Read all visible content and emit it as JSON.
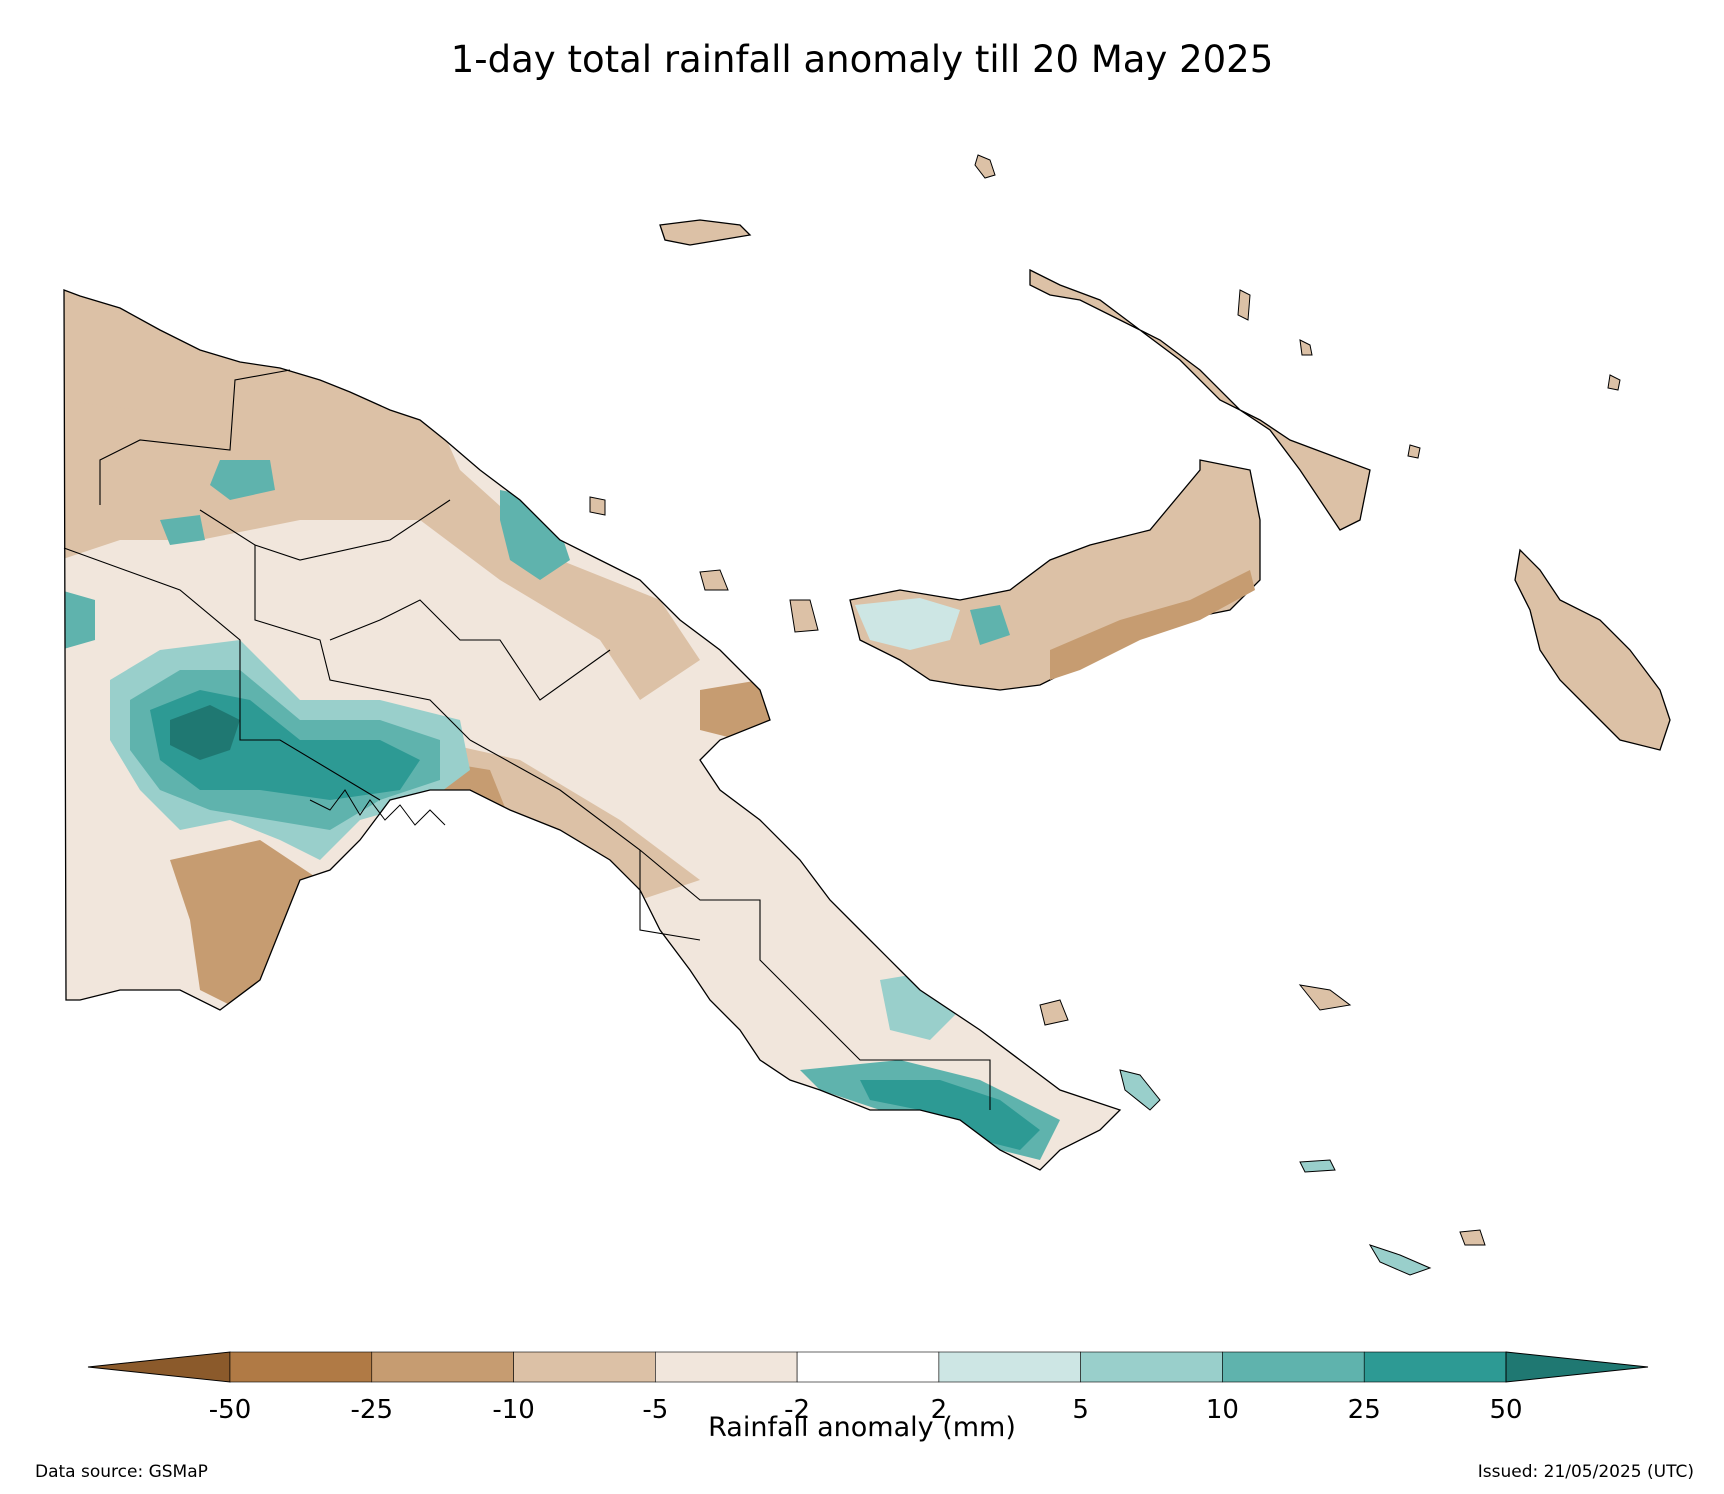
{
  "title": "1-day total rainfall anomaly till 20 May 2025",
  "colorbar": {
    "label": "Rainfall anomaly (mm)",
    "ticks": [
      "-50",
      "-25",
      "-10",
      "-5",
      "-2",
      "2",
      "5",
      "10",
      "25",
      "50"
    ],
    "colors": [
      "#8b5a2b",
      "#b07a45",
      "#c69c71",
      "#dcc1a6",
      "#f1e6dc",
      "#ffffff",
      "#cde6e4",
      "#99cfcb",
      "#5fb3ad",
      "#2d9a94",
      "#1f7872"
    ]
  },
  "footer": {
    "source": "Data source: GSMaP",
    "issued": "Issued: 21/05/2025 (UTC)"
  },
  "legend_colors": {
    "coast": "#000000"
  }
}
